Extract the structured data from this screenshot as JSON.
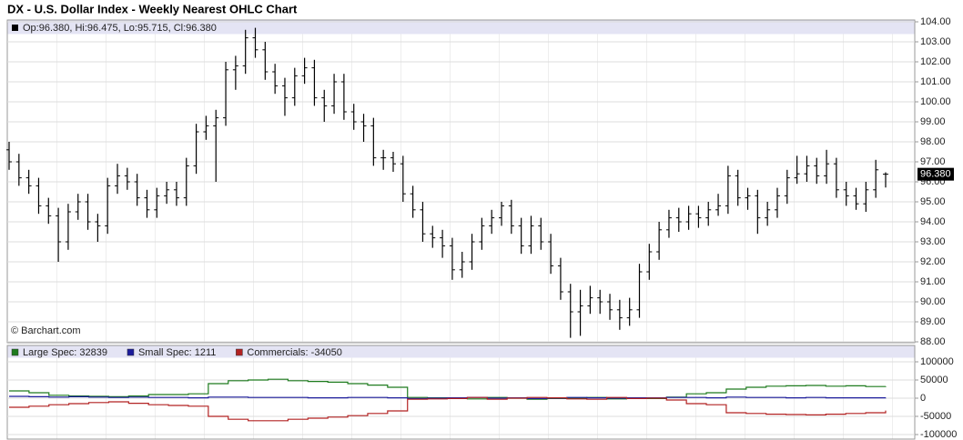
{
  "chart_data": [
    {
      "type": "ohlc",
      "title": "DX - U.S. Dollar Index - Weekly Nearest OHLC Chart",
      "ohlc_legend": "Op:96.380, Hi:96.475, Lo:95.715, Cl:96.380",
      "source": "© Barchart.com",
      "color": "#000000",
      "open": [
        97.6,
        97.0,
        96.2,
        95.8,
        94.8,
        94.3,
        93.0,
        94.5,
        95.0,
        94.0,
        93.8,
        95.8,
        96.3,
        96.0,
        95.2,
        94.6,
        95.3,
        95.6,
        95.2,
        96.8,
        98.5,
        98.8,
        99.2,
        101.6,
        101.8,
        103.2,
        102.6,
        101.5,
        100.8,
        100.2,
        101.3,
        101.7,
        100.2,
        99.8,
        101.0,
        99.5,
        99.0,
        98.8,
        97.2,
        97.2,
        96.9,
        95.4,
        94.6,
        93.4,
        93.2,
        92.8,
        91.6,
        92.0,
        93.0,
        93.8,
        94.2,
        94.8,
        93.8,
        92.8,
        93.8,
        93.0,
        91.8,
        90.5,
        89.5,
        89.8,
        90.2,
        90.0,
        89.6,
        89.2,
        89.6,
        91.5,
        92.5,
        93.6,
        94.2,
        94.0,
        94.4,
        94.2,
        94.6,
        94.8,
        96.3,
        95.2,
        95.3,
        94.2,
        94.6,
        95.3,
        96.2,
        96.4,
        96.8,
        96.3,
        96.9,
        95.6,
        95.3,
        94.9,
        95.6,
        96.38
      ],
      "high": [
        98.0,
        97.4,
        96.6,
        96.2,
        95.2,
        94.7,
        94.9,
        95.4,
        95.4,
        94.4,
        96.2,
        96.9,
        96.7,
        96.4,
        95.6,
        95.7,
        96.0,
        96.0,
        97.2,
        98.9,
        99.3,
        99.6,
        102.0,
        102.3,
        103.6,
        103.7,
        103.0,
        101.9,
        101.2,
        101.7,
        102.2,
        102.1,
        100.6,
        101.4,
        101.4,
        99.9,
        99.4,
        99.2,
        97.6,
        97.5,
        97.3,
        95.8,
        95.0,
        93.8,
        93.6,
        93.2,
        92.5,
        93.4,
        94.2,
        94.6,
        95.0,
        95.1,
        94.2,
        94.3,
        94.2,
        93.4,
        92.2,
        90.9,
        90.6,
        90.8,
        90.6,
        90.4,
        90.1,
        90.2,
        91.9,
        92.9,
        94.0,
        94.6,
        94.7,
        94.8,
        94.8,
        95.0,
        95.4,
        96.8,
        96.6,
        95.7,
        95.6,
        95.0,
        95.7,
        96.6,
        97.3,
        97.3,
        97.2,
        97.6,
        97.2,
        96.0,
        95.7,
        96.0,
        97.1,
        96.475
      ],
      "low": [
        96.6,
        95.8,
        95.4,
        94.4,
        93.9,
        92.0,
        92.6,
        94.1,
        93.6,
        93.0,
        93.4,
        95.4,
        95.6,
        94.8,
        94.2,
        94.2,
        94.9,
        94.8,
        94.8,
        96.4,
        98.1,
        96.0,
        98.8,
        100.6,
        101.4,
        102.2,
        101.1,
        100.4,
        99.3,
        99.8,
        100.9,
        99.8,
        99.0,
        99.4,
        99.1,
        98.6,
        98.0,
        96.8,
        96.6,
        96.5,
        95.0,
        94.2,
        93.0,
        92.7,
        92.2,
        91.1,
        91.2,
        91.6,
        92.6,
        93.4,
        93.8,
        93.4,
        92.4,
        92.4,
        92.6,
        91.4,
        90.1,
        88.2,
        88.3,
        89.4,
        89.4,
        89.1,
        88.6,
        88.8,
        89.2,
        91.1,
        92.1,
        93.2,
        93.5,
        93.6,
        93.7,
        93.8,
        94.3,
        94.4,
        94.8,
        94.6,
        93.4,
        93.8,
        94.2,
        94.9,
        95.9,
        96.0,
        95.9,
        95.9,
        95.2,
        94.8,
        94.6,
        94.5,
        95.2,
        95.715
      ],
      "close": [
        97.0,
        96.2,
        95.8,
        94.8,
        94.3,
        93.0,
        94.5,
        95.0,
        94.0,
        93.8,
        95.8,
        96.3,
        96.0,
        95.2,
        94.6,
        95.3,
        95.6,
        95.2,
        96.8,
        98.5,
        98.8,
        99.2,
        101.6,
        101.8,
        103.2,
        102.6,
        101.5,
        100.8,
        100.2,
        101.3,
        101.7,
        100.2,
        99.8,
        101.0,
        99.5,
        99.0,
        98.8,
        97.2,
        97.2,
        96.9,
        95.4,
        94.6,
        93.4,
        93.2,
        92.8,
        91.6,
        92.0,
        93.0,
        93.8,
        94.2,
        94.8,
        93.8,
        92.8,
        93.8,
        93.0,
        91.8,
        90.5,
        89.5,
        89.8,
        90.2,
        90.0,
        89.6,
        89.2,
        89.6,
        91.5,
        92.5,
        93.6,
        94.2,
        94.0,
        94.4,
        94.2,
        94.6,
        94.8,
        96.3,
        95.2,
        95.3,
        94.2,
        94.6,
        95.3,
        96.2,
        96.4,
        96.8,
        96.3,
        96.9,
        95.6,
        95.3,
        94.9,
        95.6,
        96.6,
        96.38
      ],
      "last_price": {
        "value": 96.38,
        "label": "96.380"
      },
      "ylim": [
        88,
        104
      ],
      "yticks": [
        {
          "value": 88,
          "label": "88.00"
        },
        {
          "value": 89,
          "label": "89.00"
        },
        {
          "value": 90,
          "label": "90.00"
        },
        {
          "value": 91,
          "label": "91.00"
        },
        {
          "value": 92,
          "label": "92.00"
        },
        {
          "value": 93,
          "label": "93.00"
        },
        {
          "value": 94,
          "label": "94.00"
        },
        {
          "value": 95,
          "label": "95.00"
        },
        {
          "value": 96,
          "label": "96.00"
        },
        {
          "value": 97,
          "label": "97.00"
        },
        {
          "value": 98,
          "label": "98.00"
        },
        {
          "value": 99,
          "label": "99.00"
        },
        {
          "value": 100,
          "label": "100.00"
        },
        {
          "value": 101,
          "label": "101.00"
        },
        {
          "value": 102,
          "label": "102.00"
        },
        {
          "value": 103,
          "label": "103.00"
        },
        {
          "value": 104,
          "label": "104.00"
        }
      ],
      "grid": true
    },
    {
      "type": "step",
      "series": [
        {
          "name": "Large Spec: 32839",
          "color": "#1e7b1e",
          "values": [
            20000,
            15000,
            8000,
            6000,
            5000,
            4000,
            6000,
            10000,
            10000,
            12000,
            40000,
            48000,
            50000,
            52000,
            48000,
            46000,
            44000,
            40000,
            36000,
            30000,
            2000,
            1000,
            0,
            -2000,
            2000,
            0,
            -3000,
            -1000,
            0,
            2000,
            -2000,
            0,
            -1000,
            3000,
            12000,
            15000,
            25000,
            30000,
            33000,
            34000,
            35000,
            33000,
            34000,
            32000,
            32839
          ]
        },
        {
          "name": "Small Spec: 1211",
          "color": "#1c1c9c",
          "values": [
            5000,
            4000,
            3000,
            4000,
            3000,
            2000,
            3000,
            2000,
            2000,
            1000,
            3000,
            3000,
            2000,
            2000,
            2000,
            1000,
            1000,
            2000,
            2000,
            1000,
            -1000,
            0,
            1000,
            2000,
            0,
            1000,
            -1000,
            0,
            2000,
            1000,
            0,
            1000,
            1000,
            2000,
            2000,
            1000,
            3000,
            2000,
            2000,
            1000,
            2000,
            1000,
            1000,
            1000,
            1211
          ]
        },
        {
          "name": "Commercials: -34050",
          "color": "#b22222",
          "values": [
            -25000,
            -22000,
            -18000,
            -15000,
            -12000,
            -10000,
            -14000,
            -18000,
            -20000,
            -22000,
            -50000,
            -58000,
            -62000,
            -62000,
            -58000,
            -55000,
            -52000,
            -48000,
            -42000,
            -35000,
            -3000,
            -2000,
            -1000,
            2000,
            -3000,
            0,
            2000,
            1000,
            -2000,
            -3000,
            2000,
            -1000,
            0,
            -5000,
            -15000,
            -18000,
            -40000,
            -42000,
            -44000,
            -45000,
            -46000,
            -44000,
            -42000,
            -40000,
            -34050
          ]
        }
      ],
      "ylim": [
        -100000,
        100000
      ],
      "yticks": [
        100000,
        50000,
        0,
        -50000,
        -100000
      ],
      "grid": true
    }
  ]
}
